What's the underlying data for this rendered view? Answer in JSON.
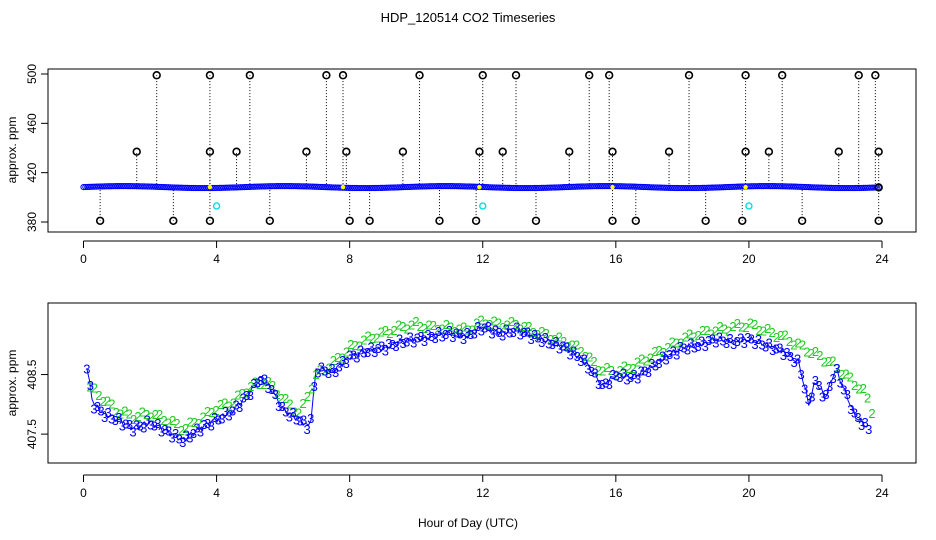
{
  "chart_data": [
    {
      "type": "scatter",
      "title": "HDP_120514  CO2 Timeseries",
      "xlabel": "",
      "ylabel": "approx. ppm",
      "xlim": [
        0,
        24
      ],
      "ylim": [
        380,
        500
      ],
      "x_ticks": [
        0,
        4,
        8,
        12,
        16,
        20,
        24
      ],
      "y_ticks": [
        380,
        420,
        460,
        500
      ],
      "colors": {
        "main": "#0000ff",
        "outlier": "#000000",
        "alt": "#00e0e0",
        "highlight": "#ffff00"
      },
      "baseline_ppm": 408.3,
      "high_spikes": [
        {
          "x": 2.2,
          "y": 499
        },
        {
          "x": 3.8,
          "y": 499
        },
        {
          "x": 5.0,
          "y": 499
        },
        {
          "x": 7.3,
          "y": 499
        },
        {
          "x": 7.8,
          "y": 499
        },
        {
          "x": 10.1,
          "y": 499
        },
        {
          "x": 12.0,
          "y": 499
        },
        {
          "x": 13.0,
          "y": 499
        },
        {
          "x": 15.2,
          "y": 499
        },
        {
          "x": 15.8,
          "y": 499
        },
        {
          "x": 18.2,
          "y": 499
        },
        {
          "x": 19.9,
          "y": 499
        },
        {
          "x": 21.0,
          "y": 499
        },
        {
          "x": 23.3,
          "y": 499
        },
        {
          "x": 23.8,
          "y": 499
        }
      ],
      "mid_spikes": [
        {
          "x": 1.6,
          "y": 437
        },
        {
          "x": 3.8,
          "y": 437
        },
        {
          "x": 4.6,
          "y": 437
        },
        {
          "x": 6.7,
          "y": 437
        },
        {
          "x": 7.9,
          "y": 437
        },
        {
          "x": 9.6,
          "y": 437
        },
        {
          "x": 11.9,
          "y": 437
        },
        {
          "x": 12.6,
          "y": 437
        },
        {
          "x": 14.6,
          "y": 437
        },
        {
          "x": 15.9,
          "y": 437
        },
        {
          "x": 17.6,
          "y": 437
        },
        {
          "x": 19.9,
          "y": 437
        },
        {
          "x": 20.6,
          "y": 437
        },
        {
          "x": 22.7,
          "y": 437
        },
        {
          "x": 23.9,
          "y": 437
        }
      ],
      "low_spikes": [
        {
          "x": 0.5,
          "y": 381
        },
        {
          "x": 2.7,
          "y": 381
        },
        {
          "x": 3.8,
          "y": 381
        },
        {
          "x": 5.6,
          "y": 381
        },
        {
          "x": 8.0,
          "y": 381
        },
        {
          "x": 8.6,
          "y": 381
        },
        {
          "x": 10.7,
          "y": 381
        },
        {
          "x": 11.8,
          "y": 381
        },
        {
          "x": 13.6,
          "y": 381
        },
        {
          "x": 15.9,
          "y": 381
        },
        {
          "x": 16.6,
          "y": 381
        },
        {
          "x": 18.7,
          "y": 381
        },
        {
          "x": 19.8,
          "y": 381
        },
        {
          "x": 21.6,
          "y": 381
        },
        {
          "x": 23.9,
          "y": 381
        }
      ],
      "end_marks": [
        {
          "x": 23.9,
          "y": 408
        }
      ],
      "cyan_points": [
        {
          "x": 4.0,
          "y": 393
        },
        {
          "x": 12.0,
          "y": 393
        },
        {
          "x": 20.0,
          "y": 393
        }
      ]
    },
    {
      "type": "line",
      "title": "",
      "xlabel": "Hour of Day (UTC)",
      "ylabel": "approx. ppm",
      "xlim": [
        0,
        24
      ],
      "ylim": [
        407.2,
        409.55
      ],
      "x_ticks": [
        0,
        4,
        8,
        12,
        16,
        20,
        24
      ],
      "y_ticks": [
        407.5,
        408.5
      ],
      "colors": {
        "series3": "#0000ff",
        "series2": "#22cc22",
        "line": "#0000ff"
      },
      "series": [
        {
          "marker": "3",
          "x": [
            0.1,
            0.3,
            0.6,
            1.0,
            1.5,
            2.0,
            2.5,
            3.0,
            3.5,
            4.0,
            4.5,
            5.0,
            5.3,
            5.6,
            6.0,
            6.5,
            6.8,
            7.0,
            7.5,
            8.0,
            8.5,
            9.0,
            9.5,
            10.0,
            10.5,
            11.0,
            11.5,
            12.0,
            12.5,
            13.0,
            13.5,
            14.0,
            14.5,
            15.0,
            15.3,
            15.6,
            16.0,
            16.5,
            17.0,
            17.5,
            18.0,
            18.5,
            19.0,
            19.5,
            20.0,
            20.5,
            21.0,
            21.5,
            21.8,
            22.0,
            22.3,
            22.6,
            22.9,
            23.2,
            23.6
          ],
          "y": [
            408.6,
            408.0,
            407.85,
            407.75,
            407.6,
            407.7,
            407.55,
            407.4,
            407.6,
            407.75,
            407.9,
            408.2,
            408.45,
            408.3,
            407.9,
            407.75,
            407.6,
            408.6,
            408.55,
            408.8,
            408.9,
            408.95,
            409.05,
            409.1,
            409.15,
            409.2,
            409.15,
            409.3,
            409.2,
            409.25,
            409.15,
            409.05,
            408.95,
            408.75,
            408.55,
            408.3,
            408.5,
            408.45,
            408.6,
            408.8,
            408.95,
            409.0,
            409.1,
            409.05,
            409.1,
            409.0,
            408.9,
            408.7,
            408.0,
            408.4,
            408.1,
            408.6,
            408.2,
            407.8,
            407.6
          ]
        },
        {
          "marker": "2",
          "x": [
            0.2,
            0.5,
            1.0,
            1.5,
            2.0,
            2.5,
            3.0,
            3.5,
            4.0,
            4.5,
            5.0,
            5.5,
            6.0,
            6.5,
            7.0,
            7.5,
            8.0,
            8.5,
            9.0,
            9.5,
            10.0,
            10.5,
            11.0,
            11.5,
            12.0,
            12.5,
            13.0,
            13.5,
            14.0,
            14.5,
            15.0,
            15.5,
            16.0,
            16.5,
            17.0,
            17.5,
            18.0,
            18.5,
            19.0,
            19.5,
            20.0,
            20.5,
            21.0,
            21.5,
            22.0,
            22.5,
            23.0,
            23.5,
            23.7
          ],
          "y": [
            408.3,
            408.15,
            407.9,
            407.8,
            407.85,
            407.75,
            407.6,
            407.75,
            407.95,
            408.05,
            408.3,
            408.4,
            408.1,
            407.85,
            408.5,
            408.7,
            408.95,
            409.1,
            409.2,
            409.3,
            409.35,
            409.3,
            409.3,
            409.25,
            409.4,
            409.35,
            409.35,
            409.25,
            409.15,
            409.05,
            408.9,
            408.6,
            408.55,
            408.65,
            408.8,
            408.95,
            409.1,
            409.2,
            409.25,
            409.3,
            409.35,
            409.25,
            409.15,
            409.0,
            408.85,
            408.7,
            408.45,
            408.2,
            407.9
          ]
        }
      ]
    }
  ]
}
